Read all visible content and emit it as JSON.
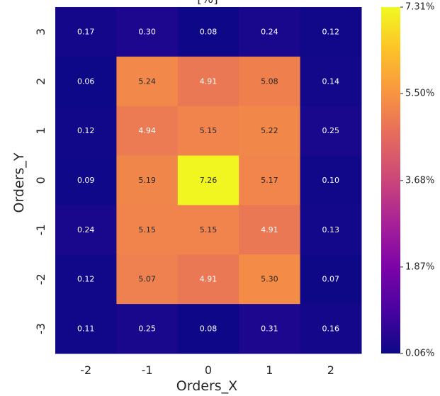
{
  "chart_data": {
    "type": "heatmap",
    "title": "[%]",
    "xlabel": "Orders_X",
    "ylabel": "Orders_Y",
    "x_categories": [
      "-2",
      "-1",
      "0",
      "1",
      "2"
    ],
    "y_categories": [
      "3",
      "2",
      "1",
      "0",
      "-1",
      "-2",
      "-3"
    ],
    "values": [
      [
        0.17,
        0.3,
        0.08,
        0.24,
        0.12
      ],
      [
        0.06,
        5.24,
        4.91,
        5.08,
        0.14
      ],
      [
        0.12,
        4.94,
        5.15,
        5.22,
        0.25
      ],
      [
        0.09,
        5.19,
        7.26,
        5.17,
        0.1
      ],
      [
        0.24,
        5.15,
        5.15,
        4.91,
        0.13
      ],
      [
        0.12,
        5.07,
        4.91,
        5.3,
        0.07
      ],
      [
        0.11,
        0.25,
        0.08,
        0.31,
        0.16
      ]
    ],
    "value_format": "2 decimals",
    "colormap": "plasma",
    "vmin": 0.06,
    "vmax": 7.31,
    "colorbar": {
      "ticks": [
        0.06,
        1.87,
        3.68,
        5.5,
        7.31
      ],
      "tick_labels": [
        "0.06%",
        "1.87%",
        "3.68%",
        "5.50%",
        "7.31%"
      ]
    }
  }
}
